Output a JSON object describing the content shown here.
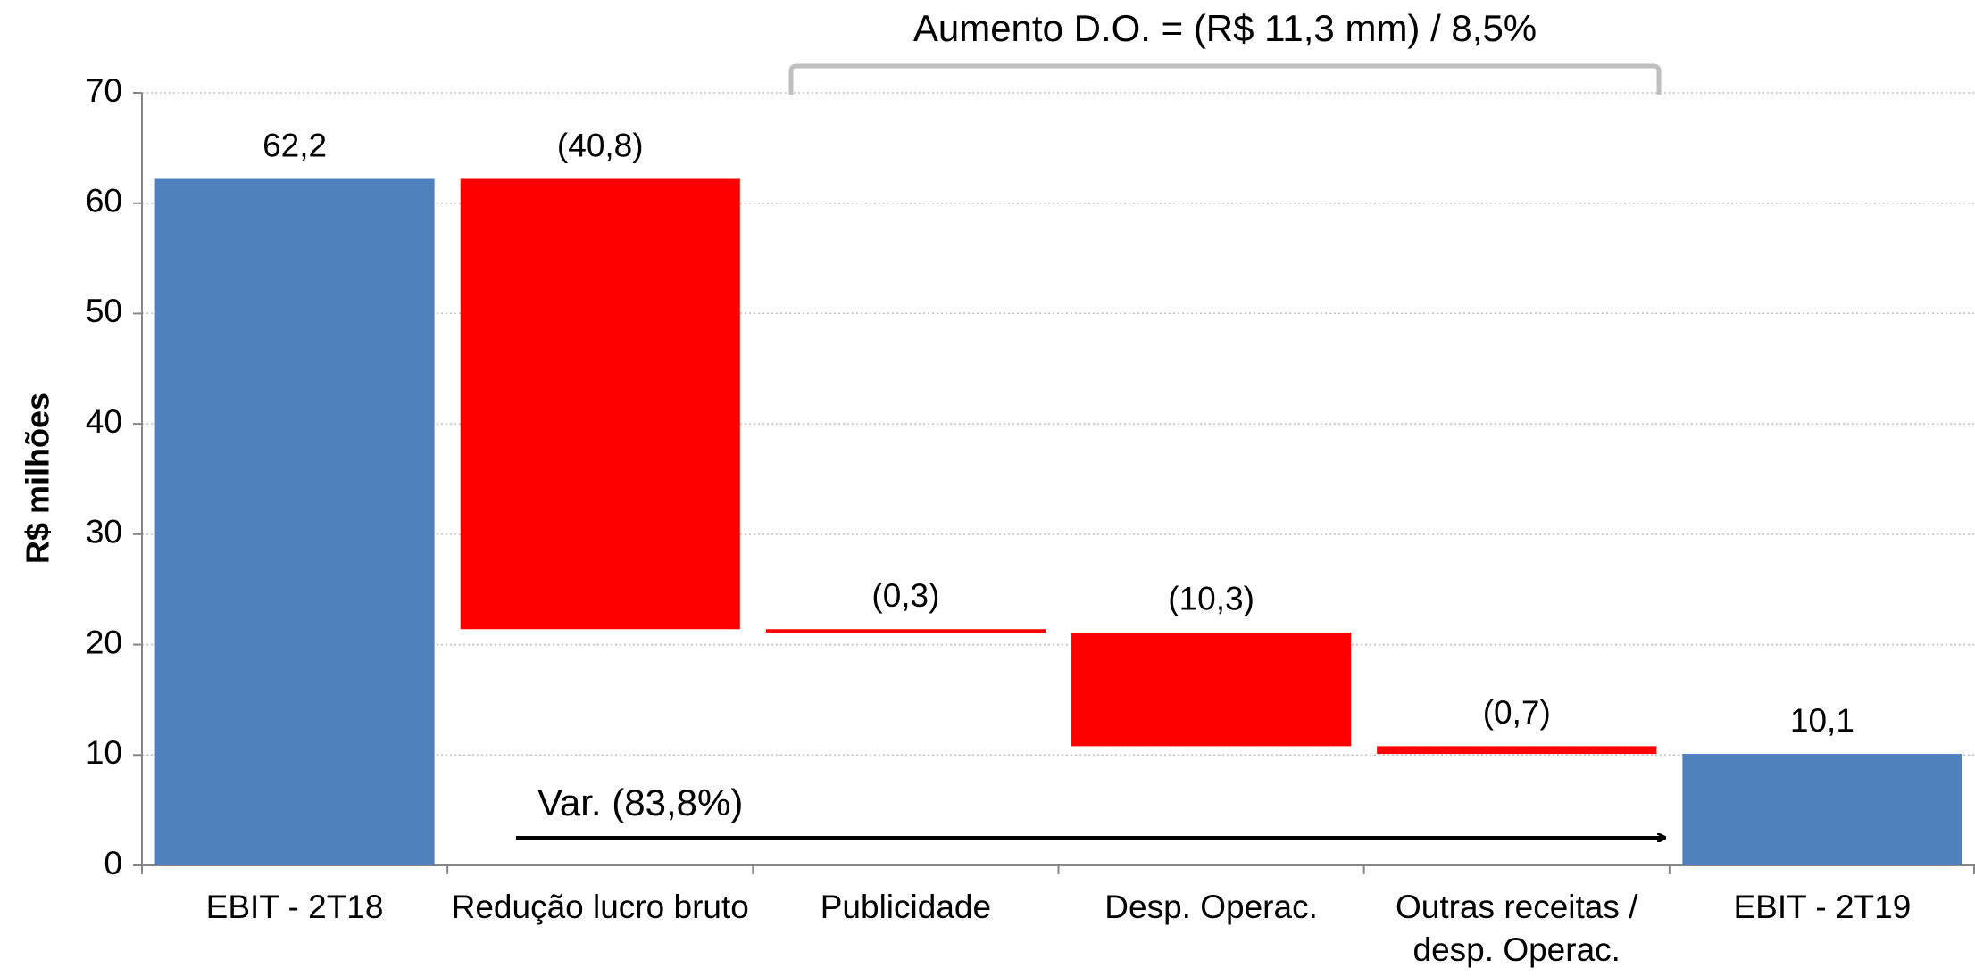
{
  "chart_data": {
    "type": "waterfall",
    "y_label": "R$ milhões",
    "categories": [
      "EBIT - 2T18",
      "Redução lucro bruto",
      "Publicidade",
      "Desp. Operac.",
      "Outras receitas / desp. Operac.",
      "EBIT - 2T19"
    ],
    "values": [
      62.2,
      -40.8,
      -0.3,
      -10.3,
      -0.7,
      10.1
    ],
    "value_labels": [
      "62,2",
      "(40,8)",
      "(0,3)",
      "(10,3)",
      "(0,7)",
      "10,1"
    ],
    "measure": [
      "total",
      "relative",
      "relative",
      "relative",
      "relative",
      "total"
    ],
    "total_color": "#4f81bd",
    "decrease_color": "#ff0000",
    "ylim": [
      0,
      70
    ],
    "yticks": [
      0,
      10,
      20,
      30,
      40,
      50,
      60,
      70
    ],
    "grid": true,
    "annotations": [
      "Aumento D.O. = (R$ 11,3 mm) / 8,5%",
      "Var. (83,8%)"
    ]
  }
}
